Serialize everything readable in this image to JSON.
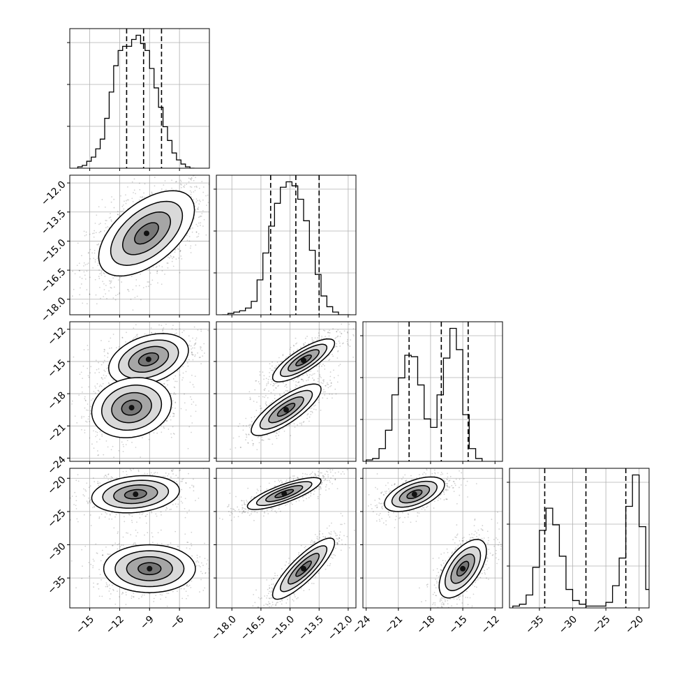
{
  "chart_data": {
    "type": "corner",
    "n_params": 4,
    "parameters": [
      {
        "index": 0,
        "range": [
          -17,
          -3
        ],
        "ticks": [
          -15,
          -12,
          -9,
          -6
        ],
        "tick_labels": [
          "−15",
          "−12",
          "−9",
          "−6"
        ]
      },
      {
        "index": 1,
        "range": [
          -18.8,
          -11.6
        ],
        "ticks": [
          -18.0,
          -16.5,
          -15.0,
          -13.5,
          -12.0
        ],
        "tick_labels": [
          "−18.0",
          "−16.5",
          "−15.0",
          "−13.5",
          "−12.0"
        ]
      },
      {
        "index": 2,
        "range": [
          -24.3,
          -11.3
        ],
        "ticks": [
          -24,
          -21,
          -18,
          -15,
          -12
        ],
        "tick_labels": [
          "−24",
          "−21",
          "−18",
          "−15",
          "−12"
        ]
      },
      {
        "index": 3,
        "range": [
          -39.5,
          -18.5
        ],
        "ticks": [
          -35,
          -30,
          -25,
          -20
        ],
        "tick_labels": [
          "−35",
          "−30",
          "−25",
          "−20"
        ]
      }
    ],
    "quantiles": [
      [
        -11.3,
        -9.6,
        -7.8
      ],
      [
        -16.0,
        -14.7,
        -13.5
      ],
      [
        -20.0,
        -17.0,
        -14.5
      ],
      [
        -34.2,
        -28.0,
        -22.0
      ]
    ],
    "histograms": [
      {
        "bin_start": -16.2,
        "bin_width": 0.45,
        "counts": [
          1,
          2,
          5,
          8,
          14,
          21,
          36,
          55,
          74,
          85,
          88,
          88,
          93,
          96,
          90,
          85,
          72,
          58,
          44,
          30,
          20,
          11,
          6,
          3,
          1,
          0
        ]
      },
      {
        "bin_start": -18.5,
        "bin_width": 0.3,
        "counts": [
          0,
          1,
          2,
          3,
          5,
          10,
          26,
          46,
          66,
          83,
          95,
          99,
          96,
          86,
          70,
          48,
          30,
          14,
          6,
          2,
          0,
          0
        ]
      },
      {
        "bin_start": -24,
        "bin_width": 0.6,
        "counts": [
          1,
          2,
          9,
          22,
          47,
          59,
          75,
          74,
          54,
          30,
          24,
          47,
          73,
          94,
          79,
          33,
          9,
          2
        ]
      },
      {
        "bin_start": -39,
        "bin_width": 1.0,
        "counts": [
          1,
          2,
          7,
          22,
          42,
          54,
          45,
          28,
          10,
          4,
          2,
          1,
          1,
          1,
          3,
          12,
          27,
          55,
          72,
          44,
          10,
          2,
          0
        ]
      }
    ],
    "pair_panels": [
      {
        "x": 0,
        "y": 1,
        "modes": [
          {
            "cx": -9.3,
            "cy": -14.6,
            "sx": 2.4,
            "sy": 1.1,
            "rho": 0.55,
            "weight": 1.0
          }
        ]
      },
      {
        "x": 0,
        "y": 2,
        "modes": [
          {
            "cx": -9.1,
            "cy": -14.8,
            "sx": 2.0,
            "sy": 1.2,
            "rho": 0.35,
            "weight": 0.55
          },
          {
            "cx": -10.8,
            "cy": -19.3,
            "sx": 2.0,
            "sy": 1.4,
            "rho": 0.15,
            "weight": 0.45
          }
        ]
      },
      {
        "x": 1,
        "y": 2,
        "modes": [
          {
            "cx": -14.3,
            "cy": -14.9,
            "sx": 0.8,
            "sy": 1.0,
            "rho": 0.8,
            "weight": 0.55
          },
          {
            "cx": -15.2,
            "cy": -19.5,
            "sx": 0.9,
            "sy": 1.2,
            "rho": 0.8,
            "weight": 0.45
          }
        ]
      },
      {
        "x": 0,
        "y": 3,
        "modes": [
          {
            "cx": -10.4,
            "cy": -22.4,
            "sx": 2.2,
            "sy": 1.4,
            "rho": 0.2,
            "weight": 0.5
          },
          {
            "cx": -9.0,
            "cy": -33.6,
            "sx": 2.3,
            "sy": 1.8,
            "rho": 0.0,
            "weight": 0.5
          }
        ]
      },
      {
        "x": 1,
        "y": 3,
        "modes": [
          {
            "cx": -15.3,
            "cy": -22.3,
            "sx": 0.95,
            "sy": 1.2,
            "rho": 0.8,
            "weight": 0.5
          },
          {
            "cx": -14.3,
            "cy": -33.6,
            "sx": 0.8,
            "sy": 2.3,
            "rho": 0.85,
            "weight": 0.5
          }
        ]
      },
      {
        "x": 2,
        "y": 3,
        "modes": [
          {
            "cx": -19.5,
            "cy": -22.4,
            "sx": 1.4,
            "sy": 1.3,
            "rho": 0.55,
            "weight": 0.5
          },
          {
            "cx": -15.0,
            "cy": -33.6,
            "sx": 1.1,
            "sy": 2.2,
            "rho": 0.6,
            "weight": 0.5
          }
        ]
      }
    ],
    "contour_levels_sigma": [
      0.5,
      1.0,
      1.5,
      2.0
    ],
    "contour_fills": [
      "#ffffff",
      "#d9d9d9",
      "#a6a6a6",
      "#777777"
    ],
    "grid": true,
    "title": "",
    "xlabel": "",
    "ylabel": ""
  }
}
